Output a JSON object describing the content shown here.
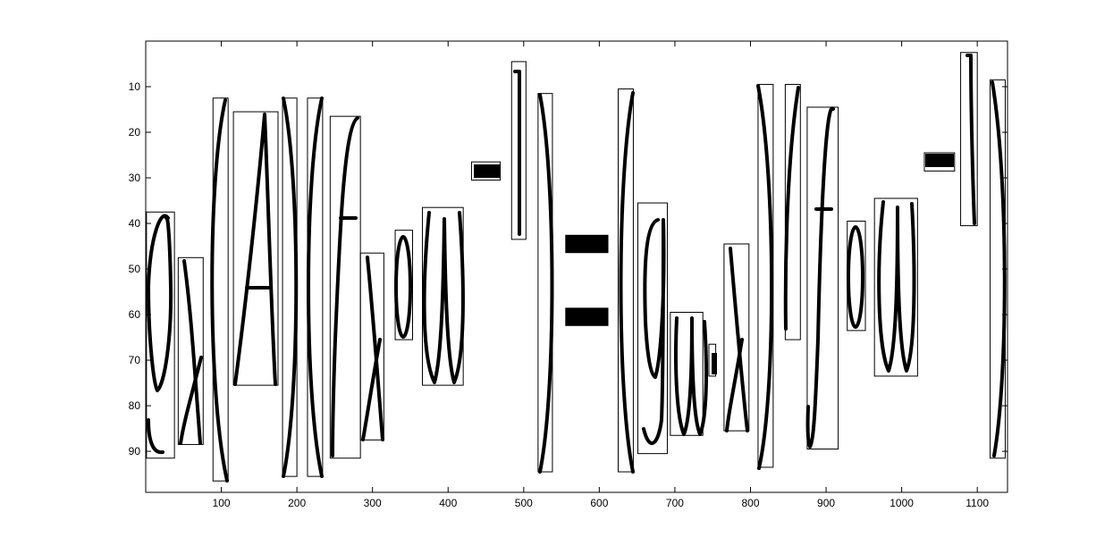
{
  "chart_data": {
    "type": "image-plot",
    "title": "",
    "xlabel": "",
    "ylabel": "",
    "xlim": [
      0,
      1140
    ],
    "ylim": [
      0,
      99
    ],
    "y_reversed": true,
    "x_ticks": [
      100,
      200,
      300,
      400,
      500,
      600,
      700,
      800,
      900,
      1000,
      1100
    ],
    "y_ticks": [
      10,
      20,
      30,
      40,
      50,
      60,
      70,
      80,
      90
    ],
    "bounding_boxes": [
      {
        "x0": 1,
        "x1": 38,
        "y0": 37.5,
        "y1": 91.5
      },
      {
        "x0": 43,
        "x1": 76,
        "y0": 47.5,
        "y1": 88.5
      },
      {
        "x0": 89,
        "x1": 109,
        "y0": 12.5,
        "y1": 96.5
      },
      {
        "x0": 116,
        "x1": 175,
        "y0": 15.5,
        "y1": 75.5
      },
      {
        "x0": 181,
        "x1": 200,
        "y0": 12.5,
        "y1": 95.5
      },
      {
        "x0": 214,
        "x1": 234,
        "y0": 12.5,
        "y1": 95.5
      },
      {
        "x0": 244,
        "x1": 284,
        "y0": 16.5,
        "y1": 91.5
      },
      {
        "x0": 284,
        "x1": 315,
        "y0": 46.5,
        "y1": 87.5
      },
      {
        "x0": 330,
        "x1": 353,
        "y0": 41.5,
        "y1": 65.5
      },
      {
        "x0": 366,
        "x1": 420,
        "y0": 36.5,
        "y1": 75.5
      },
      {
        "x0": 431,
        "x1": 469,
        "y0": 26.5,
        "y1": 30.5
      },
      {
        "x0": 484,
        "x1": 503,
        "y0": 4.5,
        "y1": 43.5
      },
      {
        "x0": 519,
        "x1": 538,
        "y0": 11.5,
        "y1": 94.5
      },
      {
        "x0": 625,
        "x1": 645,
        "y0": 10.5,
        "y1": 94.5
      },
      {
        "x0": 651,
        "x1": 690,
        "y0": 35.5,
        "y1": 90.5
      },
      {
        "x0": 694,
        "x1": 737,
        "y0": 59.5,
        "y1": 86.5
      },
      {
        "x0": 745,
        "x1": 754,
        "y0": 66.5,
        "y1": 73.5
      },
      {
        "x0": 765,
        "x1": 798,
        "y0": 44.5,
        "y1": 85.5
      },
      {
        "x0": 810,
        "x1": 830,
        "y0": 9.5,
        "y1": 93.5
      },
      {
        "x0": 846,
        "x1": 866,
        "y0": 9.5,
        "y1": 65.5
      },
      {
        "x0": 875,
        "x1": 916,
        "y0": 14.5,
        "y1": 89.5
      },
      {
        "x0": 928,
        "x1": 952,
        "y0": 39.5,
        "y1": 63.5
      },
      {
        "x0": 964,
        "x1": 1021,
        "y0": 34.5,
        "y1": 73.5
      },
      {
        "x0": 1030,
        "x1": 1070,
        "y0": 24.5,
        "y1": 28.5
      },
      {
        "x0": 1078,
        "x1": 1100,
        "y0": 2.5,
        "y1": 40.5
      },
      {
        "x0": 1117,
        "x1": 1137,
        "y0": 8.5,
        "y1": 91.5
      }
    ],
    "filled_bars": [
      {
        "x0": 555,
        "x1": 612,
        "y0": 42.5,
        "y1": 46.5
      },
      {
        "x0": 555,
        "x1": 612,
        "y0": 58.5,
        "y1": 62.5
      }
    ]
  },
  "colors": {
    "background": "#ffffff",
    "ink": "#000000",
    "axes": "#000000"
  }
}
